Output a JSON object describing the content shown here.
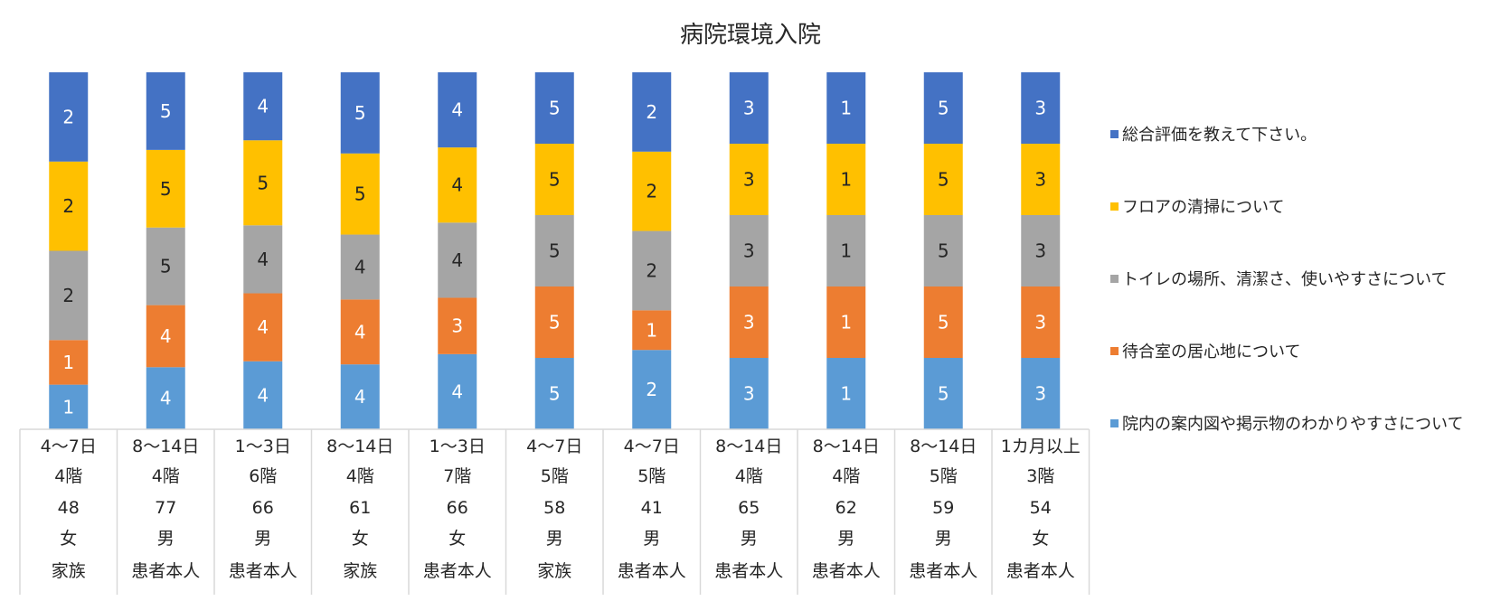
{
  "chart_data": {
    "type": "bar",
    "stacked": true,
    "title": "病院環境入院",
    "series": [
      {
        "name": "院内の案内図や掲示物のわかりやすさについて",
        "color": "#5B9BD5",
        "values": [
          1,
          4,
          4,
          4,
          4,
          5,
          2,
          3,
          1,
          5,
          3
        ]
      },
      {
        "name": "待合室の居心地について",
        "color": "#ED7D31",
        "values": [
          1,
          4,
          4,
          4,
          3,
          5,
          1,
          3,
          1,
          5,
          3
        ]
      },
      {
        "name": "トイレの場所、清潔さ、使いやすさについて",
        "color": "#A5A5A5",
        "values": [
          2,
          5,
          4,
          4,
          4,
          5,
          2,
          3,
          1,
          5,
          3
        ]
      },
      {
        "name": "フロアの清掃について",
        "color": "#FFC000",
        "values": [
          2,
          5,
          5,
          5,
          4,
          5,
          2,
          3,
          1,
          5,
          3
        ]
      },
      {
        "name": "総合評価を教えて下さい。",
        "color": "#4472C4",
        "values": [
          2,
          5,
          4,
          5,
          4,
          5,
          2,
          3,
          1,
          5,
          3
        ]
      }
    ],
    "categories": [
      [
        "4〜7日",
        "4階",
        "48",
        "女",
        "家族"
      ],
      [
        "8〜14日",
        "4階",
        "77",
        "男",
        "患者本人"
      ],
      [
        "1〜3日",
        "6階",
        "66",
        "男",
        "患者本人"
      ],
      [
        "8〜14日",
        "4階",
        "61",
        "女",
        "家族"
      ],
      [
        "1〜3日",
        "7階",
        "66",
        "女",
        "患者本人"
      ],
      [
        "4〜7日",
        "5階",
        "58",
        "男",
        "家族"
      ],
      [
        "4〜7日",
        "5階",
        "41",
        "男",
        "患者本人"
      ],
      [
        "8〜14日",
        "4階",
        "65",
        "男",
        "患者本人"
      ],
      [
        "8〜14日",
        "4階",
        "62",
        "男",
        "患者本人"
      ],
      [
        "8〜14日",
        "5階",
        "59",
        "男",
        "患者本人"
      ],
      [
        "1カ月以上",
        "3階",
        "54",
        "女",
        "患者本人"
      ]
    ],
    "legend_position": "right",
    "legend_order": [
      4,
      3,
      2,
      1,
      0
    ],
    "grid": false
  }
}
